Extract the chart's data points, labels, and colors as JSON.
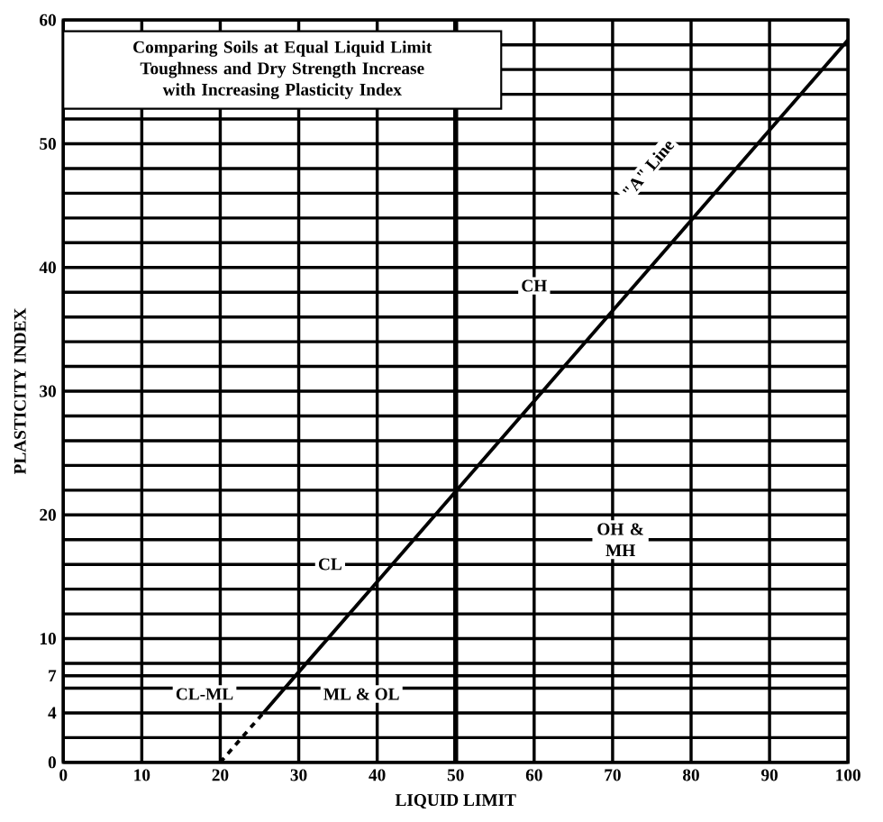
{
  "chart_data": {
    "type": "line",
    "title": "Comparing Soils at Equal Liquid Limit",
    "subtitle": "Toughness and Dry Strength Increase with Increasing Plasticity Index",
    "xlabel": "LIQUID LIMIT",
    "ylabel": "PLASTICITY INDEX",
    "series": [
      {
        "color": "#000000",
        "line_style": "solid",
        "x": [
          25.5,
          30,
          40,
          50,
          60,
          70,
          80,
          90,
          100
        ],
        "values": [
          4,
          7.3,
          14.6,
          21.9,
          29.2,
          36.5,
          43.8,
          51.1,
          58.4
        ]
      },
      {
        "color": "#000000",
        "line_style": "dashed",
        "x": [
          20,
          25.5
        ],
        "values": [
          0,
          4
        ]
      }
    ],
    "xlim": [
      0,
      100
    ],
    "ylim": [
      0,
      60
    ],
    "xticks": [
      0,
      10,
      20,
      30,
      40,
      50,
      60,
      70,
      80,
      90,
      100
    ],
    "yticks": [
      0,
      {
        "value": 2,
        "label": null
      },
      4,
      {
        "value": 6,
        "label": null
      },
      7,
      {
        "value": 8,
        "label": null
      },
      10,
      {
        "value": 12,
        "label": null
      },
      {
        "value": 14,
        "label": null
      },
      {
        "value": 16,
        "label": null
      },
      {
        "value": 18,
        "label": null
      },
      20,
      {
        "value": 22,
        "label": null
      },
      {
        "value": 24,
        "label": null
      },
      {
        "value": 26,
        "label": null
      },
      {
        "value": 28,
        "label": null
      },
      30,
      {
        "value": 32,
        "label": null
      },
      {
        "value": 34,
        "label": null
      },
      {
        "value": 36,
        "label": null
      },
      {
        "value": 38,
        "label": null
      },
      40,
      {
        "value": 42,
        "label": null
      },
      {
        "value": 44,
        "label": null
      },
      {
        "value": 46,
        "label": null
      },
      {
        "value": 48,
        "label": null
      },
      50,
      {
        "value": 52,
        "label": null
      },
      {
        "value": 54,
        "label": null
      },
      {
        "value": 56,
        "label": null
      },
      {
        "value": 58,
        "label": null
      },
      60
    ],
    "ref_lines": [
      {
        "axis": "x",
        "value": 50
      }
    ],
    "annotations": [
      "CH",
      "CL",
      "CL-ML",
      "ML & OL",
      "OH & MH",
      "\"A\" Line"
    ],
    "grid": true,
    "marker": "none"
  }
}
